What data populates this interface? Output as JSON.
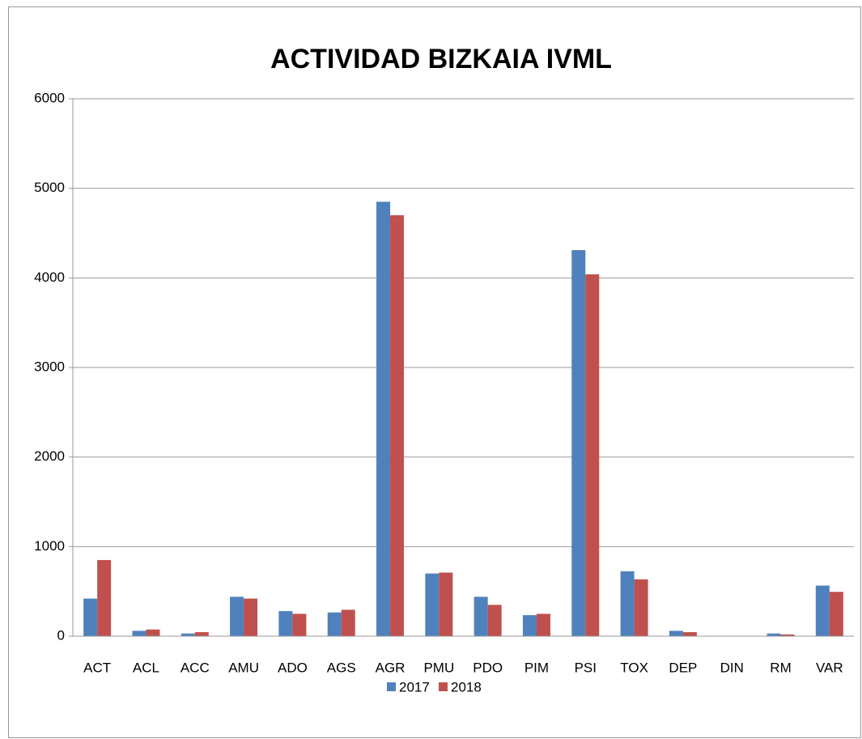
{
  "chart_data": {
    "type": "bar",
    "title": "ACTIVIDAD BIZKAIA IVML",
    "categories": [
      "ACT",
      "ACL",
      "ACC",
      "AMU",
      "ADO",
      "AGS",
      "AGR",
      "PMU",
      "PDO",
      "PIM",
      "PSI",
      "TOX",
      "DEP",
      "DIN",
      "RM",
      "VAR"
    ],
    "series": [
      {
        "name": "2017",
        "color": "#4f81bd",
        "values": [
          420,
          60,
          30,
          440,
          280,
          265,
          4850,
          700,
          440,
          235,
          4310,
          725,
          60,
          0,
          30,
          565
        ]
      },
      {
        "name": "2018",
        "color": "#c0504d",
        "values": [
          850,
          75,
          45,
          420,
          250,
          295,
          4700,
          710,
          350,
          250,
          4040,
          635,
          45,
          0,
          20,
          495
        ]
      }
    ],
    "ylim": [
      0,
      6000
    ],
    "yticks": [
      0,
      1000,
      2000,
      3000,
      4000,
      5000,
      6000
    ],
    "grid": true,
    "legend": "bottom"
  }
}
